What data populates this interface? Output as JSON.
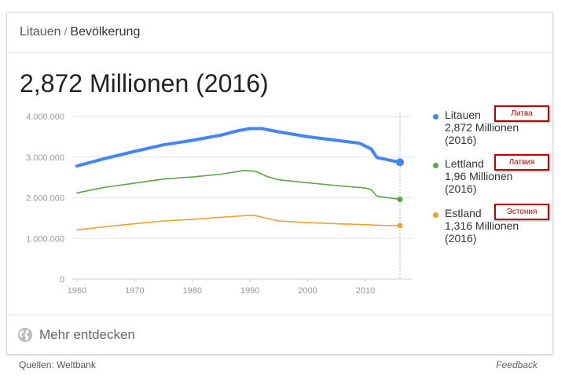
{
  "breadcrumb": {
    "parent": "Litauen",
    "separator": "/",
    "current": "Bevölkerung"
  },
  "headline": "2,872 Millionen (2016)",
  "explore": {
    "label": "Mehr entdecken",
    "icon": "globe-icon"
  },
  "footer": {
    "source": "Quellen: Weltbank",
    "feedback": "Feedback"
  },
  "legend": [
    {
      "name": "Litauen",
      "value": "2,872 Millionen",
      "year": "(2016)",
      "annotation": "Литва",
      "color": "#4285f4"
    },
    {
      "name": "Lettland",
      "value": "1,96 Millionen",
      "year": "(2016)",
      "annotation": "Латвия",
      "color": "#5aa546"
    },
    {
      "name": "Estland",
      "value": "1,316 Millionen",
      "year": "(2016)",
      "annotation": "Эстония",
      "color": "#f0a030"
    }
  ],
  "chart_data": {
    "type": "line",
    "x_ticks": [
      "1960",
      "1970",
      "1980",
      "1990",
      "2000",
      "2010"
    ],
    "y_ticks": [
      "0",
      "1.000.000",
      "2.000.000",
      "3.000.000",
      "4.000.000"
    ],
    "ylim": [
      0,
      4000000
    ],
    "xlim": [
      1956,
      2017
    ],
    "grid": true,
    "legend_position": "right",
    "highlight_year": 2016,
    "series": [
      {
        "name": "Litauen",
        "color": "#4285f4",
        "x": [
          1960,
          1965,
          1970,
          1975,
          1980,
          1985,
          1988,
          1990,
          1992,
          1995,
          2000,
          2005,
          2009,
          2011,
          2012,
          2016
        ],
        "y": [
          2780000,
          2970000,
          3140000,
          3300000,
          3410000,
          3540000,
          3650000,
          3700000,
          3700000,
          3620000,
          3500000,
          3410000,
          3340000,
          3200000,
          2990000,
          2872000
        ]
      },
      {
        "name": "Lettland",
        "color": "#5aa546",
        "x": [
          1960,
          1965,
          1970,
          1975,
          1980,
          1985,
          1989,
          1991,
          1993,
          1995,
          2000,
          2005,
          2010,
          2011,
          2012,
          2016
        ],
        "y": [
          2120000,
          2260000,
          2360000,
          2460000,
          2510000,
          2580000,
          2670000,
          2650000,
          2520000,
          2440000,
          2370000,
          2300000,
          2240000,
          2200000,
          2040000,
          1960000
        ]
      },
      {
        "name": "Estland",
        "color": "#f0a030",
        "x": [
          1960,
          1965,
          1970,
          1975,
          1980,
          1985,
          1990,
          1991,
          1993,
          1995,
          2000,
          2005,
          2010,
          2013,
          2016
        ],
        "y": [
          1210000,
          1290000,
          1360000,
          1430000,
          1470000,
          1520000,
          1570000,
          1560000,
          1490000,
          1430000,
          1390000,
          1360000,
          1340000,
          1320000,
          1316000
        ]
      }
    ]
  }
}
